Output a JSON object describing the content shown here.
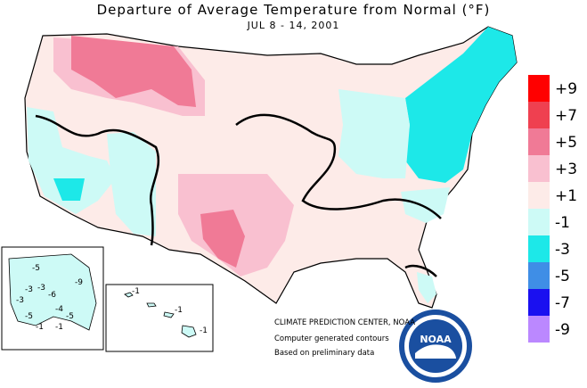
{
  "title": "Departure of Average Temperature from Normal (°F)",
  "subtitle": "JUL 8 - 14, 2001",
  "legend": [
    {
      "label": "+9",
      "color": "#ff0000"
    },
    {
      "label": "+7",
      "color": "#ef4050"
    },
    {
      "label": "+5",
      "color": "#f07a96"
    },
    {
      "label": "+3",
      "color": "#f9c0d0"
    },
    {
      "label": "+1",
      "color": "#fdebe8"
    },
    {
      "label": "-1",
      "color": "#cdfaf6"
    },
    {
      "label": "-3",
      "color": "#1de8e8"
    },
    {
      "label": "-5",
      "color": "#3f8ee6"
    },
    {
      "label": "-7",
      "color": "#1a10f0"
    },
    {
      "label": "-9",
      "color": "#bb88ff"
    }
  ],
  "credits": {
    "center": "CLIMATE PREDICTION CENTER, NOAA",
    "line1": "Computer generated contours",
    "line2": "Based on preliminary data"
  },
  "alaska_labels": [
    "-5",
    "-3",
    "-3",
    "-6",
    "-3",
    "-4",
    "-5",
    "-5",
    "-1",
    "-1",
    "-9"
  ],
  "hawaii_labels": [
    "-1",
    "-1",
    "-1"
  ],
  "logo": {
    "text": "NOAA"
  }
}
